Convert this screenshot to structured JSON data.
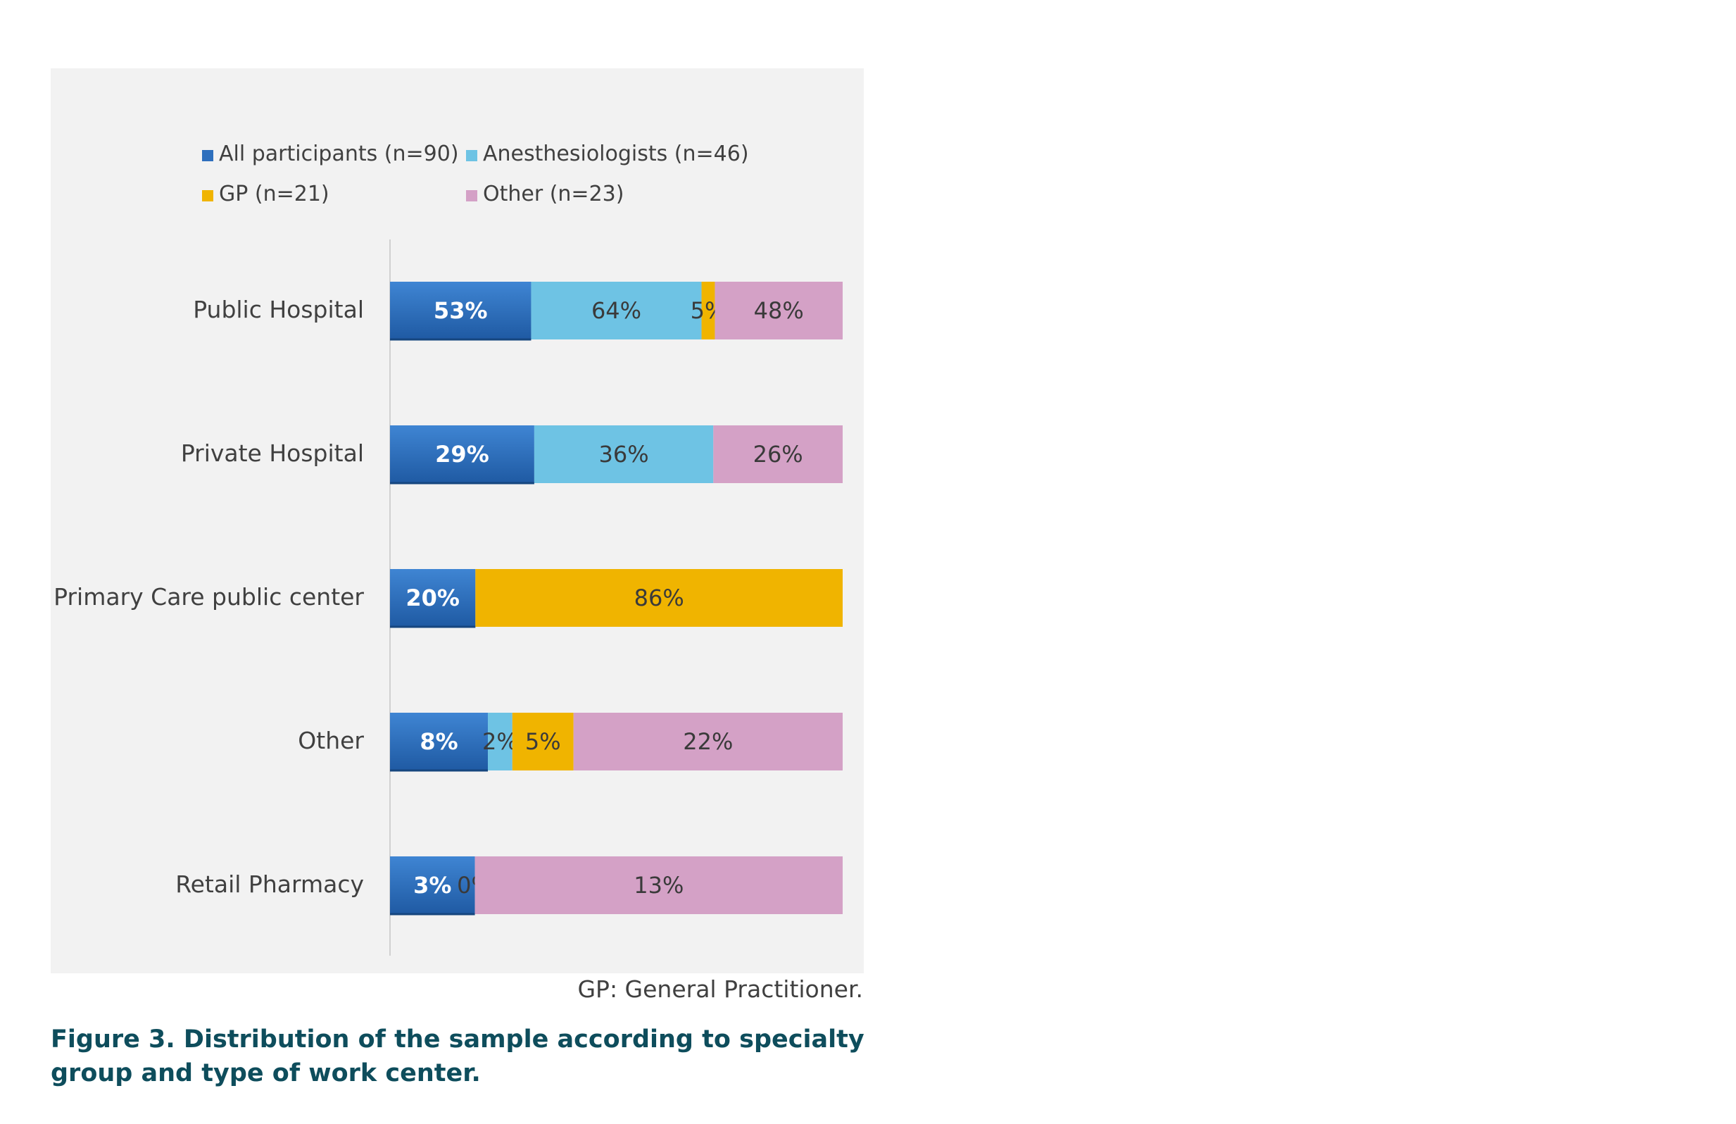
{
  "chart_data": {
    "type": "bar",
    "orientation": "horizontal",
    "stacked": true,
    "categories": [
      "Public Hospital",
      "Private Hospital",
      "Primary Care public center",
      "Other",
      "Retail Pharmacy"
    ],
    "series": [
      {
        "name": "All participants (n=90)",
        "color": "#2e6fbd",
        "values": [
          53,
          29,
          20,
          8,
          3
        ],
        "labels": [
          "53%",
          "29%",
          "20%",
          "8%",
          "3%"
        ]
      },
      {
        "name": "Anesthesiologists (n=46)",
        "color": "#6ec3e4",
        "values": [
          64,
          36,
          0,
          2,
          0
        ],
        "labels": [
          "64%",
          "36%",
          "",
          "2%",
          "0%"
        ]
      },
      {
        "name": "GP (n=21)",
        "color": "#f0b400",
        "values": [
          5,
          0,
          86,
          5,
          0
        ],
        "labels": [
          "5%",
          "",
          "86%",
          "5%",
          ""
        ]
      },
      {
        "name": "Other (n=23)",
        "color": "#d4a1c6",
        "values": [
          48,
          26,
          0,
          22,
          13
        ],
        "labels": [
          "48%",
          "26%",
          "",
          "22%",
          "13%"
        ]
      }
    ],
    "grid": false,
    "legend_position": "top"
  },
  "footnote": "GP: General Practitioner.",
  "caption": "Figure 3. Distribution of the sample according to specialty group and type of work center."
}
